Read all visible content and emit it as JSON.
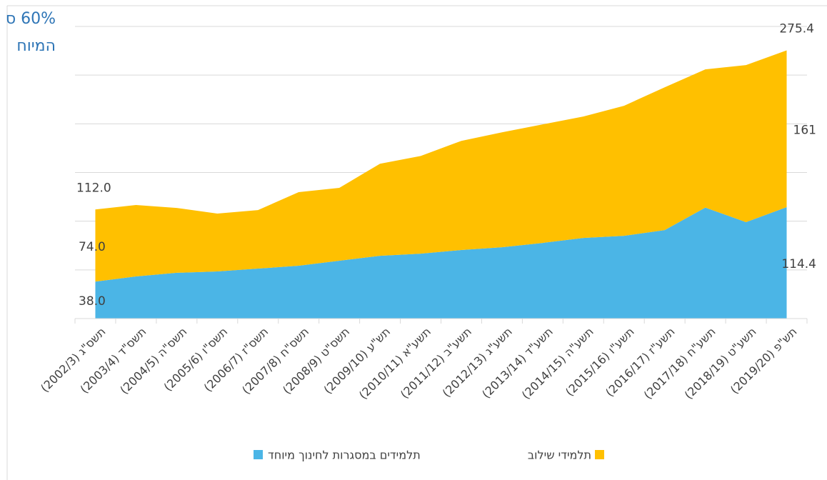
{
  "chart_data": {
    "type": "stacked-area",
    "annotations": [
      "60% ס",
      "המיוח"
    ],
    "categories": [
      "תשס\"ג (2002/3)",
      "תשס\"ד (2003/4)",
      "תשס\"ה (2004/5)",
      "תשס\"ו (2005/6)",
      "תשס\"ז (2006/7)",
      "תשס\"ח (2007/8)",
      "תשס\"ט (2008/9)",
      "תש\"ע (2009/10)",
      "תשע\"א (2010/11)",
      "תשע\"ב (2011/12)",
      "תשע\"ג (2012/13)",
      "תשע\"ד (2013/14)",
      "תשע\"ה (2014/15)",
      "תשע\"ו (2015/16)",
      "תשע\"ז (2016/17)",
      "תשע\"ח (2017/18)",
      "תשע\"ט (2018/19)",
      "תש\"פ (2019/20)"
    ],
    "series": [
      {
        "name": "תלמידים במסגרות לחינוך מיוחד",
        "color": "#4bb5e6",
        "values": [
          38,
          43.3,
          47,
          48.4,
          51.3,
          54.3,
          59.4,
          64.5,
          66.7,
          70.4,
          73.3,
          77.7,
          82.8,
          85,
          90.9,
          114,
          99,
          114.4
        ],
        "value_labels": [
          "38.0",
          null,
          null,
          null,
          null,
          null,
          null,
          null,
          null,
          null,
          null,
          null,
          null,
          null,
          null,
          null,
          null,
          "114.4"
        ]
      },
      {
        "name": "תלמידי שילוב",
        "color": "#ffc000",
        "values": [
          74,
          73.3,
          66.6,
          59.4,
          60.1,
          75.5,
          74.8,
          94.5,
          100.3,
          112.1,
          118,
          121.7,
          124.7,
          133.5,
          146.6,
          141.9,
          161.3,
          161
        ],
        "value_labels": [
          "74.0",
          null,
          null,
          null,
          null,
          null,
          null,
          null,
          null,
          null,
          null,
          null,
          null,
          null,
          null,
          null,
          null,
          "161"
        ]
      }
    ],
    "totals": [
      112,
      null,
      null,
      null,
      null,
      null,
      null,
      null,
      null,
      null,
      null,
      null,
      null,
      null,
      null,
      null,
      null,
      275.4
    ],
    "total_labels": [
      "112.0",
      null,
      null,
      null,
      null,
      null,
      null,
      null,
      null,
      null,
      null,
      null,
      null,
      null,
      null,
      null,
      null,
      "275.4"
    ],
    "ylim": [
      0,
      300
    ],
    "yticks": [
      0,
      50,
      100,
      150,
      200,
      250,
      300
    ],
    "grid": true
  }
}
